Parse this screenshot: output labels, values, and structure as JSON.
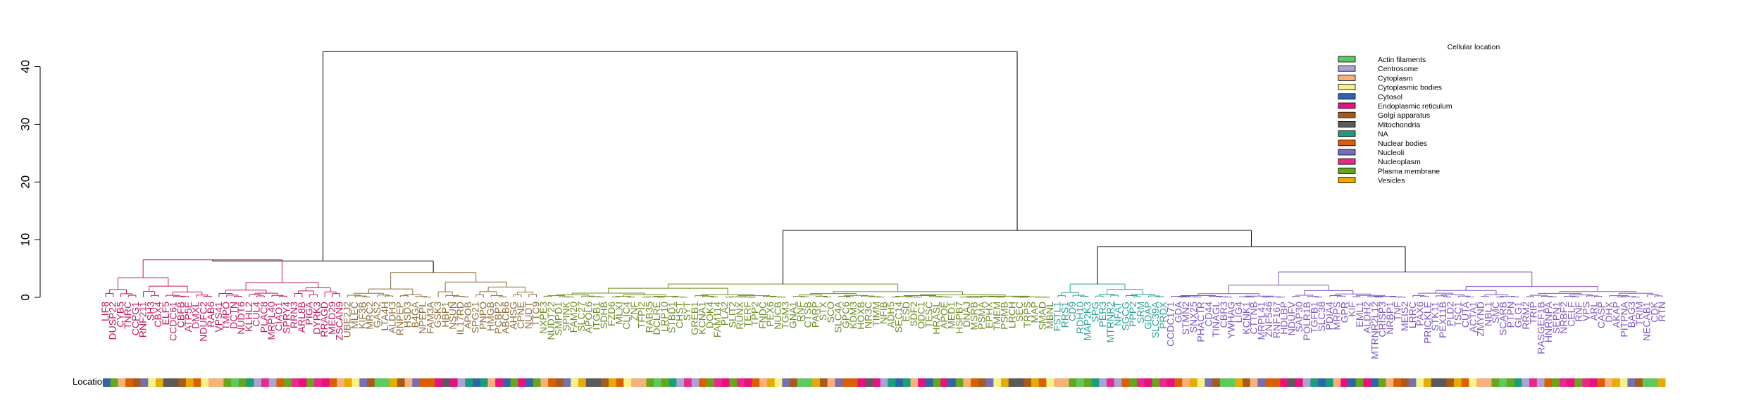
{
  "chart_data": {
    "type": "dendrogram",
    "y_axis": {
      "ylim": [
        0,
        43
      ],
      "ticks": [
        0,
        10,
        20,
        30,
        40
      ]
    },
    "row_label": "Location",
    "legend": {
      "title": "Cellular location",
      "placement": "top-right",
      "entries": [
        {
          "label": "Actin filaments",
          "color": "#5ec95e"
        },
        {
          "label": "Centrosome",
          "color": "#a9a3d6"
        },
        {
          "label": "Cytoplasm",
          "color": "#f7b07a"
        },
        {
          "label": "Cytoplasmic bodies",
          "color": "#f5f28a"
        },
        {
          "label": "Cytosol",
          "color": "#2f66a8"
        },
        {
          "label": "Endoplasmic reticulum",
          "color": "#e8117f"
        },
        {
          "label": "Golgi apparatus",
          "color": "#a65a1c"
        },
        {
          "label": "Mitochondria",
          "color": "#5a5a5a"
        },
        {
          "label": "NA",
          "color": "#1b9e77"
        },
        {
          "label": "Nuclear bodies",
          "color": "#d95f02"
        },
        {
          "label": "Nucleoli",
          "color": "#7570b3"
        },
        {
          "label": "Nucleoplasm",
          "color": "#e7298a"
        },
        {
          "label": "Plasma membrane",
          "color": "#66a61e"
        },
        {
          "label": "Vesicles",
          "color": "#e6ab02"
        }
      ]
    },
    "clusters": [
      {
        "color": "#c2185b",
        "leaves": [
          "LIF8",
          "DUSP22",
          "CYB5",
          "TNRC",
          "CCPG1",
          "RNF211",
          "SH3",
          "CBX4",
          "ELF5",
          "CCDC61",
          "CBFB",
          "ATP5E",
          "DMXL",
          "NDUFC2",
          "RAB6",
          "VPS41",
          "TMPO",
          "DCTN",
          "NUDT6",
          "KLHL2",
          "CUL4",
          "PLAC8",
          "MRPL40",
          "CIAO1",
          "SPRY4",
          "RRN3",
          "ARL8B",
          "PIGA",
          "DYRK3",
          "RRAGD",
          "MED29",
          "ZSCAN9"
        ]
      },
      {
        "color": "#8d6e3a",
        "leaves": [
          "UBE2J2",
          "MLEC",
          "KIF3B",
          "MRC2",
          "GAS2",
          "LTA4H",
          "ALDH3",
          "RNPEP",
          "HSD3",
          "B4GA",
          "NPEPL",
          "FAM3A",
          "GSK3",
          "HBP1",
          "NSUN",
          "IL17RD",
          "APOB",
          "SPG21",
          "PNPO",
          "HMGB",
          "PCBP2",
          "ABCB6",
          "AHSG",
          "CPNE",
          "NUDT",
          "TTC9"
        ]
      },
      {
        "color": "#6b8e23",
        "leaves": [
          "NXPE3",
          "NUDT22",
          "SMPD1",
          "SPINK",
          "FAM20",
          "SLC27",
          "APOL6",
          "ITGB1",
          "SDHB",
          "FZD6",
          "MLXI",
          "CLIC4",
          "ZNF",
          "TFPI2",
          "RAB35",
          "DCLRE",
          "LRP10",
          "STBD1",
          "CHST",
          "SYT",
          "GREB1",
          "KCNA1",
          "DOK4",
          "FAM114",
          "PLA2",
          "SLIT2",
          "RUNX",
          "TERF",
          "TPP2",
          "FNDC",
          "PEX6",
          "NUCB",
          "TGM3",
          "GNA1",
          "RNF",
          "CTSB",
          "PARP",
          "STX",
          "SCO",
          "SLC4A",
          "GPC6",
          "KDM3",
          "HOXB",
          "NR3C",
          "TIMM",
          "NFIB",
          "ADH5",
          "SEC14",
          "ESD",
          "SDF2",
          "ODC1",
          "TESC",
          "HRASL",
          "APOE",
          "MED1",
          "HSPB7",
          "DNAJ",
          "MSRB",
          "PSMA",
          "EPHX",
          "TMEM",
          "PSMB",
          "LRCH",
          "SEC",
          "TRPS",
          "MAP",
          "SMAD",
          "MBNL"
        ]
      },
      {
        "color": "#2aa198",
        "leaves": [
          "FSTL1",
          "RRS1",
          "CD9",
          "RDH10",
          "MAP2K3",
          "SPG",
          "PER3",
          "MTRNR2",
          "NFAT",
          "SGCG",
          "PPP2",
          "SRM",
          "GDAP",
          "SLC39A",
          "PRDX"
        ]
      },
      {
        "color": "#7e57c2",
        "leaves": [
          "CCDC171",
          "GDA",
          "STMN2",
          "SNX25",
          "PHACTR",
          "CD44",
          "TINAGL",
          "CBR3",
          "YWHAG",
          "LIG4",
          "KCNK1",
          "CTTNB",
          "MRPL41",
          "ZNF546",
          "RNF167",
          "HDLBP",
          "NDUFV",
          "SAP30",
          "POLR1B",
          "TGFB1",
          "SLC38",
          "PDIA4",
          "MRPS",
          "GPR",
          "KIF",
          "EML1",
          "ALDH2",
          "MTRNR2L12",
          "CRISP3",
          "NRBP1",
          "TNF",
          "MEIS2",
          "LRRC",
          "PAX6",
          "PRICKLE",
          "STK11",
          "PEX11B",
          "PLD2",
          "TSC1",
          "CUTA",
          "ACTA1",
          "ZMYND",
          "NBL1",
          "SMC",
          "SCARB",
          "PTPN",
          "GLG1",
          "RRM2",
          "TRIP",
          "RASGEF1B",
          "HNRNPA",
          "SEPN1",
          "NRBF2",
          "CELF",
          "RNF",
          "VPS",
          "ARL",
          "CASP",
          "DHX",
          "AKAP",
          "PITPNA",
          "BAG3",
          "TRIM",
          "NECAB1",
          "CDK",
          "RTN"
        ]
      }
    ]
  }
}
